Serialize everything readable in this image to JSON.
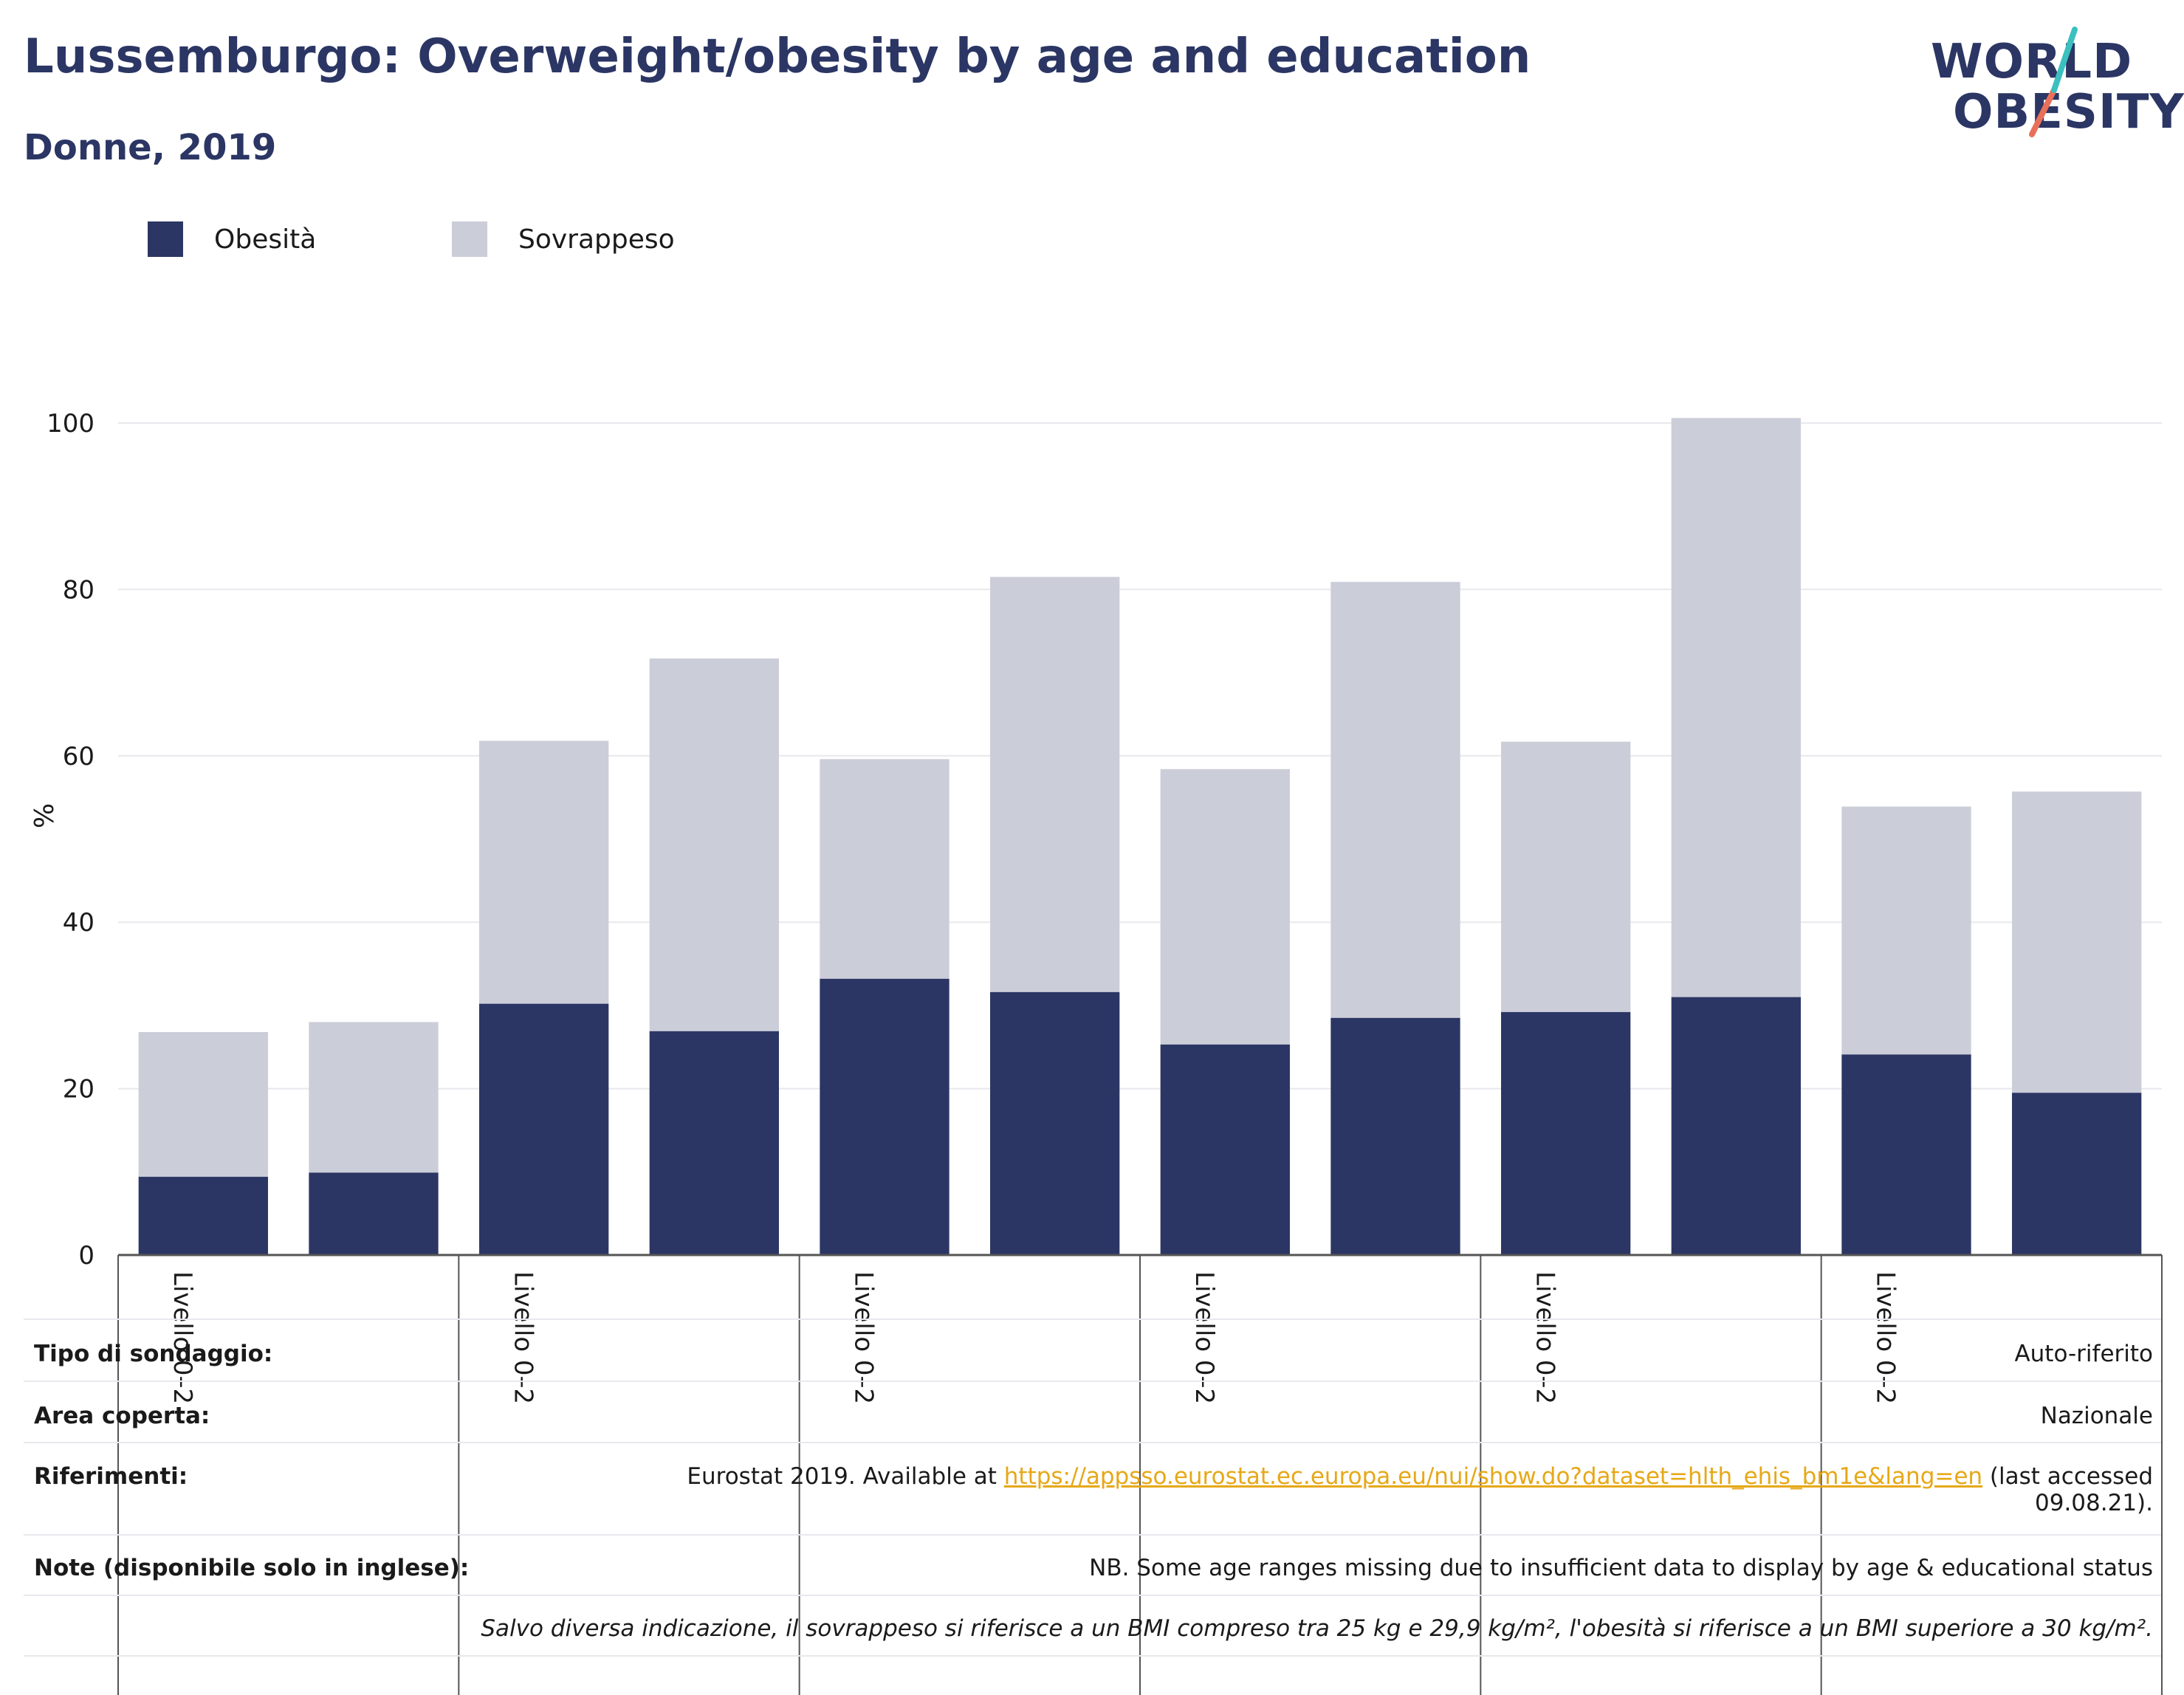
{
  "header": {
    "title": "Lussemburgo: Overweight/obesity by age and education",
    "subtitle": "Donne, 2019"
  },
  "logo": {
    "line1": "WORLD",
    "line2": "OBESITY"
  },
  "colors": {
    "obesity": "#2b3664",
    "overweight": "#cbcdd9",
    "accent_teal": "#3bbfbf",
    "accent_red": "#e8705a",
    "link": "#e6a817"
  },
  "legend": [
    {
      "label": "Obesità",
      "color": "#2b3664"
    },
    {
      "label": "Sovrappeso",
      "color": "#cbcdd9"
    }
  ],
  "chart_data": {
    "type": "bar",
    "stacked": true,
    "ylabel": "%",
    "ylim": [
      0,
      105
    ],
    "yticks": [
      0,
      20,
      40,
      60,
      80,
      100
    ],
    "grid": true,
    "legend_position": "top-left",
    "group_labels": [
      "Livello 0–2",
      "Livello 0–2",
      "Livello 0–2",
      "Livello 0–2",
      "Livello 0–2",
      "Livello 0–2"
    ],
    "series": [
      {
        "name": "Obesità",
        "values": [
          9.4,
          9.9,
          30.2,
          26.9,
          33.2,
          31.6,
          25.3,
          28.5,
          29.2,
          31.0,
          24.1,
          19.5
        ]
      },
      {
        "name": "Sovrappeso",
        "values": [
          17.4,
          18.1,
          31.6,
          44.8,
          26.4,
          49.9,
          33.1,
          52.4,
          32.5,
          69.6,
          29.8,
          36.2
        ]
      }
    ]
  },
  "info": {
    "survey_key": "Tipo di sondaggio:",
    "survey_val": "Auto-riferito",
    "area_key": "Area coperta:",
    "area_val": "Nazionale",
    "refs_key": "Riferimenti:",
    "refs_prefix": "Eurostat 2019. Available at",
    "refs_link": "https://appsso.eurostat.ec.europa.eu/nui/show.do?dataset=hlth_ehis_bm1e&lang=en",
    "refs_suffix": "(last accessed",
    "refs_date": "09.08.21).",
    "notes_key": "Note (disponibile solo in inglese):",
    "notes_val": "NB. Some age ranges missing due to insufficient data to display by age & educational status",
    "footnote": "Salvo diversa indicazione, il sovrappeso si riferisce a un BMI compreso tra 25 kg e 29,9 kg/m², l'obesità si riferisce a un BMI superiore a 30 kg/m²."
  }
}
